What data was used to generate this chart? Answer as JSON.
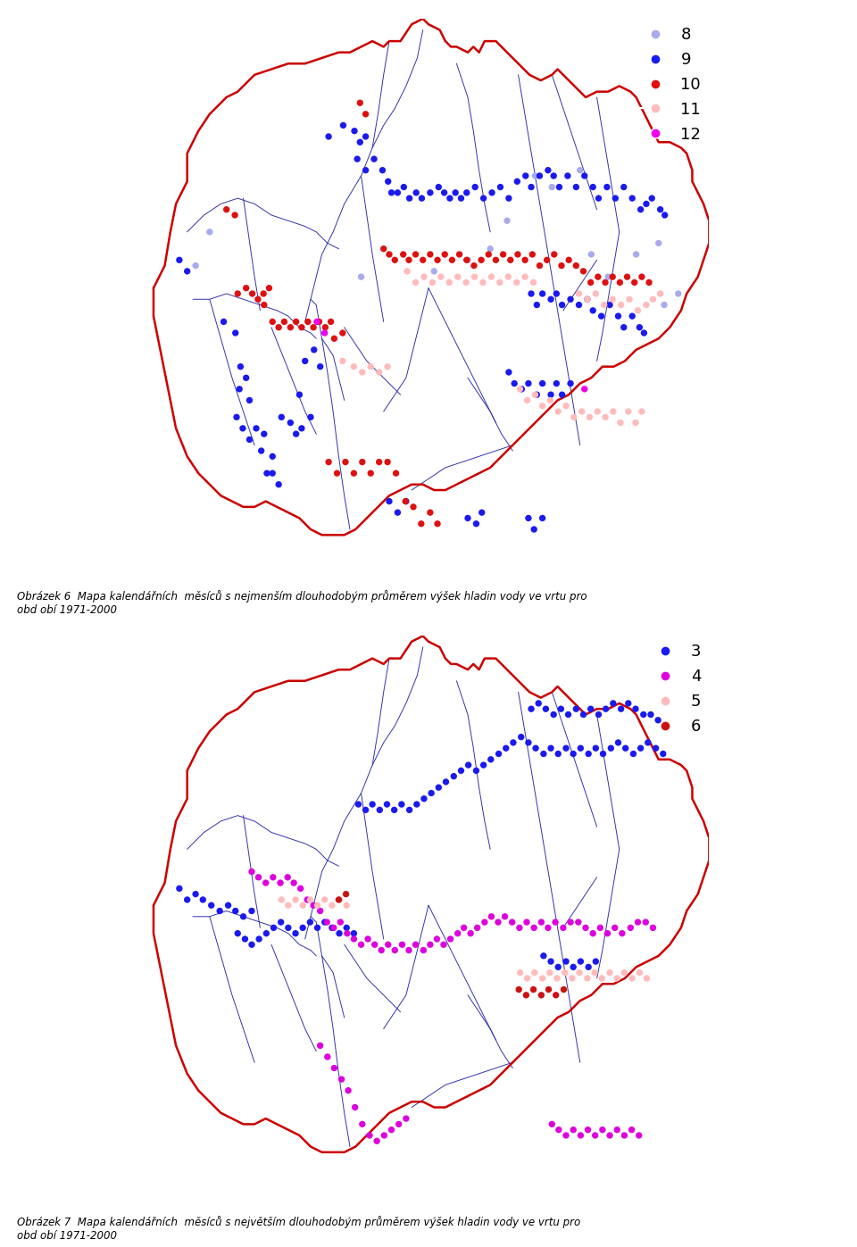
{
  "border_color": "#cc0000",
  "river_color": "#3333aa",
  "background": "#ffffff",
  "dot_size": 28,
  "map1_colors": {
    "8": "#aaaaee",
    "9": "#1a1aee",
    "10": "#dd1111",
    "11": "#ffbbbb",
    "12": "#ee00ee"
  },
  "map2_colors": {
    "3": "#1a1aee",
    "4": "#dd00dd",
    "5": "#ffbbbb",
    "6": "#cc1111"
  },
  "map1_legend": [
    "8",
    "9",
    "10",
    "11",
    "12"
  ],
  "map2_legend": [
    "3",
    "4",
    "5",
    "6"
  ],
  "map1_caption": "Obrázek 6  Mapa kalendářních  měsíců s nejmenším dlouhodobým průměrem výšek hladin vody ve vrtu pro\nobd obí 1971-2000",
  "map2_caption": "Obrázek 7  Mapa kalendářních  měsíců s největším dlouhodobým průměrem výšek hladin vody ve vrtu pro\nobd obí 1971-2000",
  "figwidth": 9.6,
  "figheight": 13.97
}
